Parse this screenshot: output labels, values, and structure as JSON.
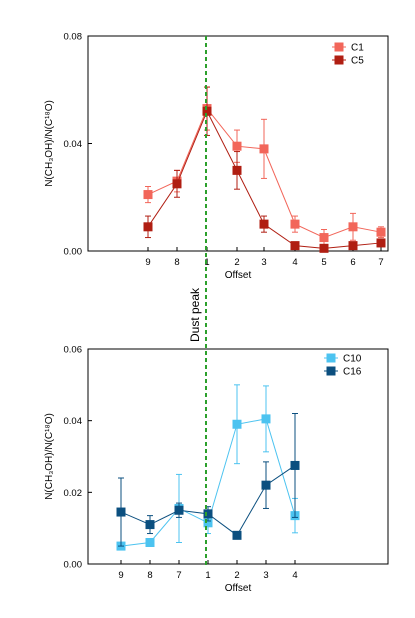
{
  "chart_data": [
    {
      "type": "line",
      "xlabel": "Offset",
      "ylabel": "N(CH₃OH)/N(C¹⁸O)",
      "ylim": [
        0,
        0.08
      ],
      "yticks": [
        "0.00",
        "0.04",
        "0.08"
      ],
      "categories": [
        "9",
        "8",
        "1",
        "2",
        "3",
        "4",
        "5",
        "6",
        "7"
      ],
      "legend_position": "top-right",
      "series": [
        {
          "name": "C1",
          "color": "#f2665a",
          "values": [
            0.021,
            0.026,
            0.053,
            0.039,
            0.038,
            0.01,
            0.005,
            0.009,
            0.007
          ],
          "errors": [
            0.003,
            0.004,
            0.008,
            0.006,
            0.011,
            0.003,
            0.003,
            0.005,
            0.002
          ]
        },
        {
          "name": "C5",
          "color": "#b01e12",
          "values": [
            0.009,
            0.025,
            0.052,
            0.03,
            0.01,
            0.002,
            0.001,
            0.002,
            0.003
          ],
          "errors": [
            0.004,
            0.005,
            0.009,
            0.007,
            0.003,
            0.001,
            0.001,
            0.001,
            0.001
          ]
        }
      ]
    },
    {
      "type": "line",
      "xlabel": "Offset",
      "ylabel": "N(CH₃OH)/N(C¹⁸O)",
      "ylim": [
        0,
        0.06
      ],
      "yticks": [
        "0.00",
        "0.02",
        "0.04",
        "0.06"
      ],
      "categories": [
        "9",
        "8",
        "7",
        "1",
        "2",
        "3",
        "4"
      ],
      "legend_position": "top-right",
      "series": [
        {
          "name": "C10",
          "color": "#4cc3f0",
          "values": [
            0.005,
            0.006,
            0.0155,
            0.0115,
            0.039,
            0.0405,
            0.0135
          ],
          "errors": [
            0.0,
            0.001,
            0.0095,
            0.003,
            0.011,
            0.0092,
            0.0048
          ]
        },
        {
          "name": "C16",
          "color": "#0b4f7f",
          "values": [
            0.0145,
            0.011,
            0.015,
            0.014,
            0.008,
            0.022,
            0.0275
          ],
          "errors": [
            0.0095,
            0.0025,
            0.002,
            0.002,
            0.0,
            0.0065,
            0.0145
          ]
        }
      ]
    }
  ],
  "annotation": {
    "label": "Dust peak",
    "color": "#2ca02c"
  }
}
